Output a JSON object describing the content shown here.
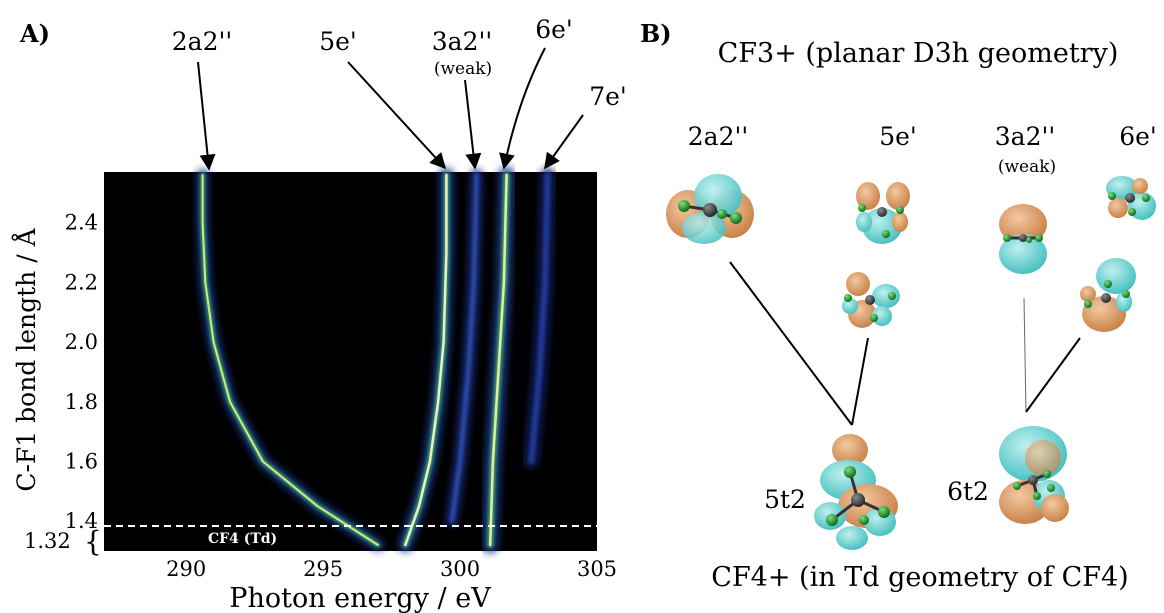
{
  "panel_a": {
    "label": "A)",
    "xlabel": "Photon energy / eV",
    "ylabel": "C-F1 bond length / Å",
    "x_ticks": [
      "290",
      "295",
      "300",
      "305"
    ],
    "y_ticks": [
      "1.4",
      "1.6",
      "1.8",
      "2.0",
      "2.2",
      "2.4"
    ],
    "equilibrium_tick": "1.32",
    "equilibrium_label": "CF4 (Td)",
    "peak_labels": {
      "p1": "2a2''",
      "p2": "5e'",
      "p3": "3a2''",
      "p3_note": "(weak)",
      "p4": "6e'",
      "p5": "7e'"
    }
  },
  "panel_b": {
    "label": "B)",
    "top_title": "CF3+ (planar D3h geometry)",
    "bottom_title": "CF4+ (in Td geometry of CF4)",
    "orbitals_top": [
      "2a2''",
      "5e'",
      "3a2''",
      "6e'"
    ],
    "weak_note": "(weak)",
    "orbitals_bottom": [
      "5t2",
      "6t2"
    ]
  },
  "colors": {
    "orbital_orange": "#d9945a",
    "orbital_cyan": "#6fd4d4",
    "atom_green": "#1a9a2a",
    "heatmap_bg": "#000000"
  },
  "chart_data": {
    "type": "heatmap",
    "title": "",
    "xlabel": "Photon energy / eV",
    "ylabel": "C-F1 bond length / Å",
    "xlim": [
      287,
      305
    ],
    "ylim": [
      1.3,
      2.57
    ],
    "x_ticks": [
      290,
      295,
      300,
      305
    ],
    "y_ticks": [
      1.4,
      1.6,
      1.8,
      2.0,
      2.2,
      2.4
    ],
    "series": [
      {
        "name": "2a2''",
        "points": [
          [
            290.6,
            2.56
          ],
          [
            290.6,
            2.4
          ],
          [
            290.7,
            2.2
          ],
          [
            291.0,
            2.0
          ],
          [
            291.6,
            1.8
          ],
          [
            292.8,
            1.6
          ],
          [
            294.8,
            1.45
          ],
          [
            297.0,
            1.32
          ]
        ]
      },
      {
        "name": "5e'",
        "points": [
          [
            299.5,
            2.56
          ],
          [
            299.5,
            2.3
          ],
          [
            299.4,
            2.0
          ],
          [
            299.2,
            1.8
          ],
          [
            298.9,
            1.6
          ],
          [
            298.5,
            1.45
          ],
          [
            298.0,
            1.32
          ]
        ]
      },
      {
        "name": "3a2''",
        "points": [
          [
            300.6,
            2.56
          ],
          [
            300.5,
            2.2
          ],
          [
            300.3,
            1.9
          ],
          [
            300.0,
            1.6
          ],
          [
            299.7,
            1.4
          ]
        ]
      },
      {
        "name": "6e'",
        "points": [
          [
            301.7,
            2.56
          ],
          [
            301.6,
            2.2
          ],
          [
            301.4,
            1.9
          ],
          [
            301.2,
            1.6
          ],
          [
            301.1,
            1.32
          ]
        ]
      },
      {
        "name": "7e'",
        "points": [
          [
            303.2,
            2.56
          ],
          [
            303.1,
            2.2
          ],
          [
            302.9,
            1.9
          ],
          [
            302.6,
            1.6
          ]
        ]
      }
    ]
  }
}
